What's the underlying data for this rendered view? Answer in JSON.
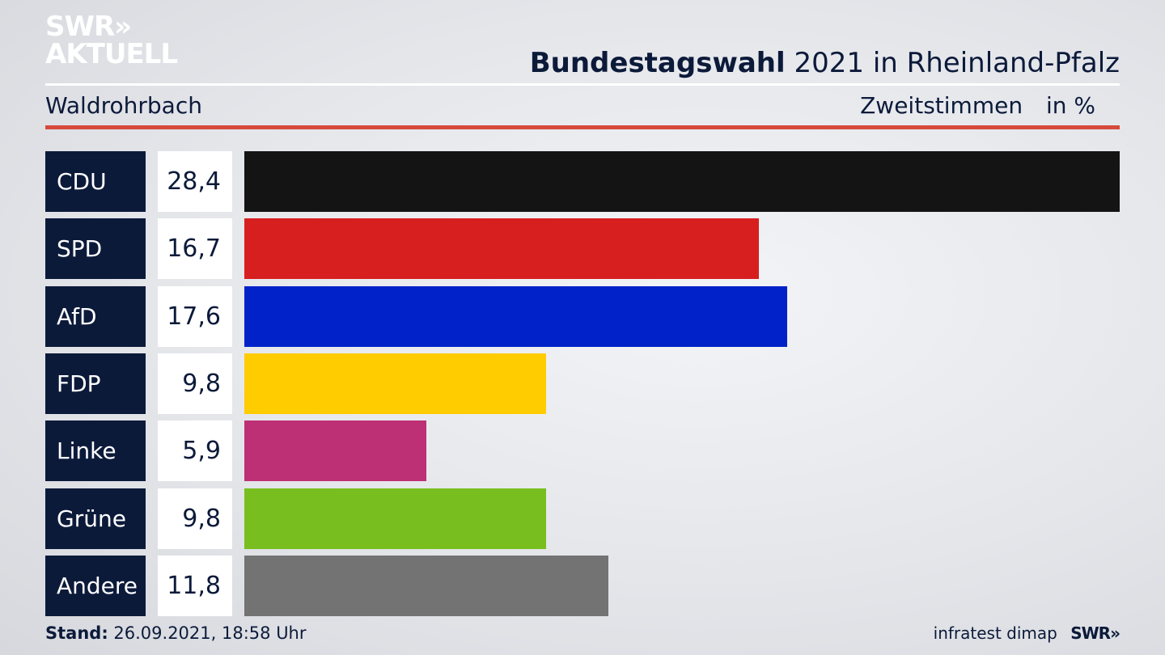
{
  "header": {
    "logo_line1": "SWR»",
    "logo_line2": "AKTUELL",
    "title_bold": "Bundestagswahl",
    "title_rest": "2021 in Rheinland-Pfalz",
    "location": "Waldrohrbach",
    "vote_type": "Zweitstimmen",
    "unit": "in %"
  },
  "chart_data": {
    "type": "bar",
    "orientation": "horizontal",
    "categories": [
      "CDU",
      "SPD",
      "AfD",
      "FDP",
      "Linke",
      "Grüne",
      "Andere"
    ],
    "values": [
      28.4,
      16.7,
      17.6,
      9.8,
      5.9,
      9.8,
      11.8
    ],
    "value_labels": [
      "28,4",
      "16,7",
      "17,6",
      "9,8",
      "5,9",
      "9,8",
      "11,8"
    ],
    "colors": [
      "#141414",
      "#d71f1f",
      "#0022c8",
      "#ffcc00",
      "#be3075",
      "#78be1e",
      "#737373"
    ],
    "ylim": [
      0,
      28.4
    ]
  },
  "footer": {
    "stand_label": "Stand:",
    "stand_value": "26.09.2021, 18:58 Uhr",
    "source": "infratest dimap",
    "brand": "SWR»"
  }
}
